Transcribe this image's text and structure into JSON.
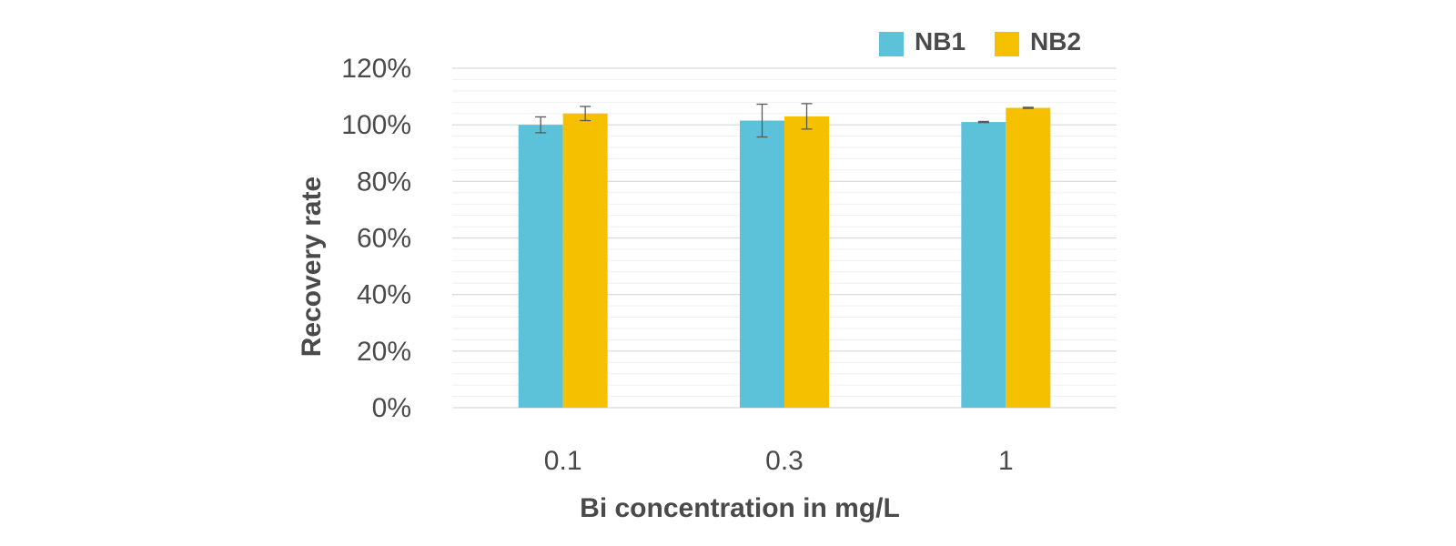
{
  "chart_data": {
    "type": "bar",
    "categories": [
      "0.1",
      "0.3",
      "1"
    ],
    "series": [
      {
        "name": "NB1",
        "color": "#5BC2D9",
        "values": [
          100,
          101.5,
          101
        ],
        "errors": [
          2.8,
          5.8,
          0.2
        ]
      },
      {
        "name": "NB2",
        "color": "#F5C000",
        "values": [
          104,
          103,
          106
        ],
        "errors": [
          2.5,
          4.5,
          0.2
        ]
      }
    ],
    "xlabel": "Bi concentration in mg/L",
    "ylabel": "Recovery rate",
    "ylim": [
      0,
      120
    ],
    "yticks": [
      0,
      20,
      40,
      60,
      80,
      100,
      120
    ],
    "ytick_labels": [
      "0%",
      "20%",
      "40%",
      "60%",
      "80%",
      "100%",
      "120%"
    ],
    "grid": true,
    "minor_grid": true,
    "legend_position": "top-right",
    "grid_color": "#d9d9d9",
    "minor_grid_color": "#efefef",
    "error_bar_color": "#595959"
  }
}
